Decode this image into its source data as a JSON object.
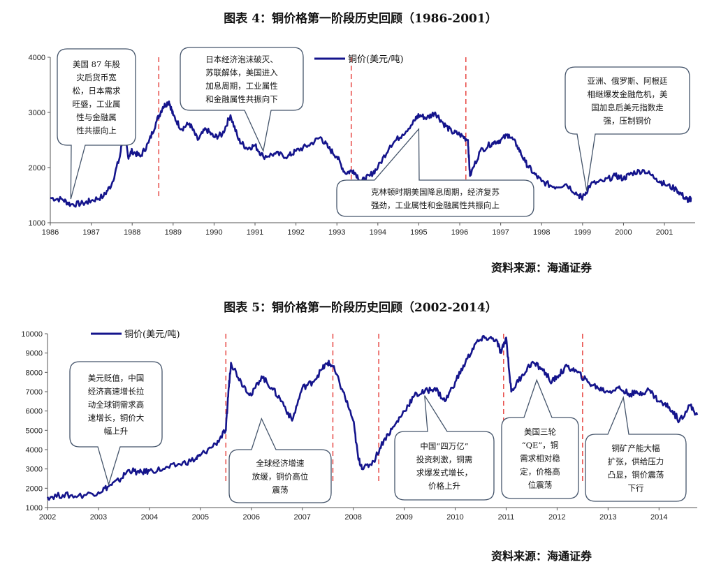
{
  "figure4": {
    "title": "图表 4：铜价格第一阶段历史回顾（1986-2001）",
    "source": "资料来源：海通证券"
  },
  "figure5": {
    "title": "图表 5：铜价格第一阶段历史回顾（2002-2014）",
    "source": "资料来源：海通证券"
  },
  "chart_data": [
    {
      "type": "line",
      "title": "图表 4：铜价格第一阶段历史回顾（1986-2001）",
      "series": [
        {
          "name": "铜价(美元/吨)",
          "x": [
            1986.0,
            1986.3,
            1986.5,
            1986.8,
            1987.0,
            1987.3,
            1987.5,
            1987.7,
            1987.8,
            1987.9,
            1988.0,
            1988.2,
            1988.4,
            1988.6,
            1988.75,
            1988.9,
            1989.0,
            1989.2,
            1989.4,
            1989.6,
            1989.8,
            1990.0,
            1990.2,
            1990.4,
            1990.6,
            1990.8,
            1991.0,
            1991.2,
            1991.5,
            1991.8,
            1992.0,
            1992.3,
            1992.6,
            1992.8,
            1993.0,
            1993.2,
            1993.4,
            1993.6,
            1993.8,
            1994.0,
            1994.3,
            1994.6,
            1994.9,
            1995.0,
            1995.2,
            1995.4,
            1995.6,
            1995.8,
            1996.0,
            1996.2,
            1996.25,
            1996.5,
            1996.8,
            1997.0,
            1997.2,
            1997.4,
            1997.6,
            1997.8,
            1998.0,
            1998.3,
            1998.6,
            1998.9,
            1999.0,
            1999.2,
            1999.5,
            1999.8,
            2000.0,
            2000.2,
            2000.5,
            2000.8,
            2001.0,
            2001.3,
            2001.5,
            2001.6,
            2001.65
          ],
          "values": [
            1450,
            1420,
            1330,
            1350,
            1400,
            1480,
            1700,
            2200,
            2700,
            2200,
            2300,
            2200,
            2450,
            2850,
            3100,
            3200,
            2950,
            2700,
            2800,
            2500,
            2700,
            2550,
            2600,
            2950,
            2500,
            2350,
            2400,
            2200,
            2250,
            2200,
            2300,
            2400,
            2550,
            2350,
            2200,
            1900,
            1950,
            1750,
            1850,
            2000,
            2400,
            2600,
            2850,
            2950,
            2900,
            3000,
            2800,
            2650,
            2600,
            2500,
            1850,
            2300,
            2450,
            2500,
            2600,
            2400,
            2100,
            1900,
            1750,
            1650,
            1700,
            1500,
            1450,
            1700,
            1750,
            1850,
            1800,
            1900,
            1950,
            1800,
            1700,
            1600,
            1450,
            1400,
            1450
          ]
        }
      ],
      "xlim": [
        1986,
        2001.75
      ],
      "ylim": [
        1000,
        4000
      ],
      "x_ticks": [
        1986,
        1987,
        1988,
        1989,
        1990,
        1991,
        1992,
        1993,
        1994,
        1995,
        1996,
        1997,
        1998,
        1999,
        2000,
        2001
      ],
      "y_ticks": [
        1000,
        2000,
        3000,
        4000
      ],
      "markers_x": [
        1988.65,
        1993.35,
        1996.15
      ],
      "legend_position": "top-center",
      "annotations": [
        {
          "lines": [
            "美国 87 年股",
            "灾后货币宽",
            "松，日本需求",
            "旺盛，工业属",
            "性与金融属",
            "性共振向上"
          ],
          "target": [
            1986.5,
            1430
          ]
        },
        {
          "lines": [
            "日本经济泡沫破灭、",
            "苏联解体，美国进入",
            "加息周期，工业属性",
            "和金融属性共振向下"
          ],
          "target": [
            1991.2,
            2300
          ]
        },
        {
          "lines": [
            "克林顿时期美国降息周期，经济复苏",
            "强劲，工业属性和金融属性共振向上"
          ],
          "target": [
            1995.0,
            2700
          ]
        },
        {
          "lines": [
            "亚洲、俄罗斯、阿根廷",
            "相继爆发金融危机，美",
            "国加息后美元指数走",
            "强，压制铜价"
          ],
          "target": [
            1999.1,
            1580
          ]
        }
      ]
    },
    {
      "type": "line",
      "title": "图表 5：铜价格第一阶段历史回顾（2002-2014）",
      "series": [
        {
          "name": "铜价(美元/吨)",
          "x": [
            2002.0,
            2002.3,
            2002.6,
            2003.0,
            2003.2,
            2003.4,
            2003.6,
            2003.8,
            2004.0,
            2004.3,
            2004.6,
            2004.9,
            2005.0,
            2005.3,
            2005.5,
            2005.55,
            2005.6,
            2005.8,
            2006.0,
            2006.2,
            2006.4,
            2006.6,
            2006.8,
            2007.0,
            2007.2,
            2007.4,
            2007.5,
            2007.6,
            2007.8,
            2008.0,
            2008.1,
            2008.2,
            2008.4,
            2008.6,
            2008.8,
            2009.0,
            2009.2,
            2009.4,
            2009.6,
            2009.8,
            2010.0,
            2010.2,
            2010.4,
            2010.6,
            2010.8,
            2010.9,
            2011.0,
            2011.1,
            2011.3,
            2011.5,
            2011.7,
            2011.9,
            2012.0,
            2012.2,
            2012.4,
            2012.6,
            2012.8,
            2013.0,
            2013.2,
            2013.4,
            2013.6,
            2013.8,
            2014.0,
            2014.2,
            2014.4,
            2014.6,
            2014.75
          ],
          "values": [
            1550,
            1650,
            1600,
            1800,
            2100,
            2400,
            2950,
            2800,
            2900,
            3000,
            3250,
            3500,
            3700,
            4300,
            5000,
            7000,
            8500,
            7500,
            6800,
            7800,
            7200,
            6500,
            5500,
            7200,
            7500,
            8200,
            8500,
            8300,
            7000,
            5500,
            3500,
            3000,
            3400,
            4500,
            5200,
            6000,
            6800,
            7000,
            7200,
            6500,
            7500,
            8500,
            9500,
            9800,
            9700,
            9000,
            9800,
            7000,
            7800,
            8500,
            8200,
            7500,
            7800,
            8300,
            8000,
            7500,
            7200,
            7000,
            7200,
            6900,
            6900,
            7100,
            6500,
            6200,
            5500,
            6300,
            5800
          ]
        }
      ],
      "xlim": [
        2002,
        2014.75
      ],
      "ylim": [
        1000,
        10000
      ],
      "x_ticks": [
        2002,
        2003,
        2004,
        2005,
        2006,
        2007,
        2008,
        2009,
        2010,
        2011,
        2012,
        2013,
        2014
      ],
      "y_ticks": [
        1000,
        2000,
        3000,
        4000,
        5000,
        6000,
        7000,
        8000,
        9000,
        10000
      ],
      "markers_x": [
        2005.5,
        2007.6,
        2008.5,
        2010.95,
        2012.5
      ],
      "legend_position": "top-left",
      "annotations": [
        {
          "lines": [
            "美元贬值，中国",
            "经济高速增长拉",
            "动全球铜需求高",
            "速增长，铜价大",
            "幅上升"
          ],
          "target": [
            2003.2,
            2200
          ]
        },
        {
          "lines": [
            "全球经济增速",
            "放缓，铜价高位",
            "震荡"
          ],
          "target": [
            2006.2,
            5600
          ]
        },
        {
          "lines": [
            "中国“四万亿”",
            "投资刺激，铜需",
            "求爆发式增长，",
            "价格上升"
          ],
          "target": [
            2009.4,
            6800
          ]
        },
        {
          "lines": [
            "美国三轮",
            "“QE”，铜",
            "需求相对稳",
            "定，价格高",
            "位震荡"
          ],
          "target": [
            2011.6,
            7600
          ]
        },
        {
          "lines": [
            "铜矿产能大幅",
            "扩张，供给压力",
            "凸显，铜价震荡",
            "下行"
          ],
          "target": [
            2013.3,
            6700
          ]
        }
      ]
    }
  ]
}
